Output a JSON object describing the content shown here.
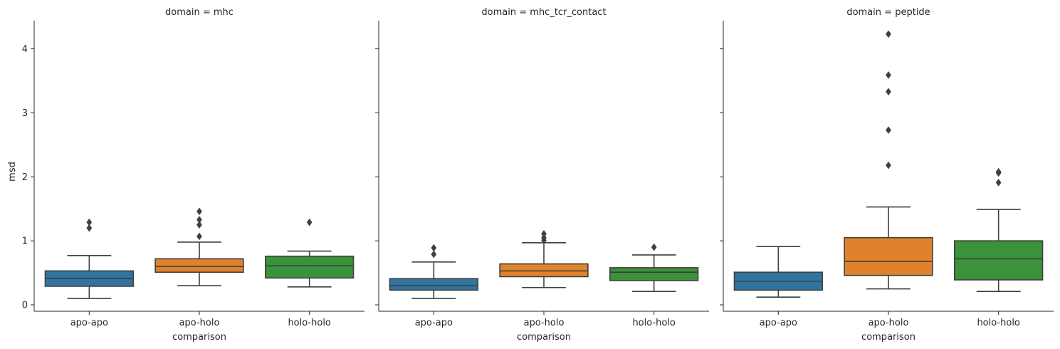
{
  "chart_data": {
    "type": "box",
    "ylabel": "msd",
    "xlabel": "comparison",
    "ylim": [
      -0.1,
      4.44
    ],
    "yticks": [
      0,
      1,
      2,
      3,
      4
    ],
    "categories": [
      "apo-apo",
      "apo-holo",
      "holo-holo"
    ],
    "colors": [
      "#3274a1",
      "#e1812c",
      "#3a923a"
    ],
    "panels": [
      {
        "title": "domain = mhc",
        "boxes": [
          {
            "category": "apo-apo",
            "whisker_low": 0.1,
            "q1": 0.29,
            "median": 0.41,
            "q3": 0.53,
            "whisker_high": 0.77,
            "outliers": [
              1.2,
              1.29
            ]
          },
          {
            "category": "apo-holo",
            "whisker_low": 0.3,
            "q1": 0.51,
            "median": 0.6,
            "q3": 0.72,
            "whisker_high": 0.98,
            "outliers": [
              1.07,
              1.25,
              1.33,
              1.46
            ]
          },
          {
            "category": "holo-holo",
            "whisker_low": 0.28,
            "q1": 0.42,
            "median": 0.61,
            "q3": 0.76,
            "whisker_high": 0.84,
            "outliers": [
              1.29
            ]
          }
        ]
      },
      {
        "title": "domain = mhc_tcr_contact",
        "boxes": [
          {
            "category": "apo-apo",
            "whisker_low": 0.1,
            "q1": 0.23,
            "median": 0.3,
            "q3": 0.41,
            "whisker_high": 0.67,
            "outliers": [
              0.79,
              0.89
            ]
          },
          {
            "category": "apo-holo",
            "whisker_low": 0.27,
            "q1": 0.44,
            "median": 0.53,
            "q3": 0.64,
            "whisker_high": 0.97,
            "outliers": [
              1.01,
              1.05,
              1.11
            ]
          },
          {
            "category": "holo-holo",
            "whisker_low": 0.21,
            "q1": 0.38,
            "median": 0.51,
            "q3": 0.58,
            "whisker_high": 0.78,
            "outliers": [
              0.9
            ]
          }
        ]
      },
      {
        "title": "domain = peptide",
        "boxes": [
          {
            "category": "apo-apo",
            "whisker_low": 0.12,
            "q1": 0.23,
            "median": 0.37,
            "q3": 0.51,
            "whisker_high": 0.91,
            "outliers": []
          },
          {
            "category": "apo-holo",
            "whisker_low": 0.25,
            "q1": 0.46,
            "median": 0.68,
            "q3": 1.05,
            "whisker_high": 1.53,
            "outliers": [
              2.18,
              2.73,
              3.33,
              3.59,
              4.23
            ]
          },
          {
            "category": "holo-holo",
            "whisker_low": 0.21,
            "q1": 0.39,
            "median": 0.72,
            "q3": 1.0,
            "whisker_high": 1.49,
            "outliers": [
              1.91,
              2.06,
              2.08
            ]
          }
        ]
      }
    ]
  }
}
